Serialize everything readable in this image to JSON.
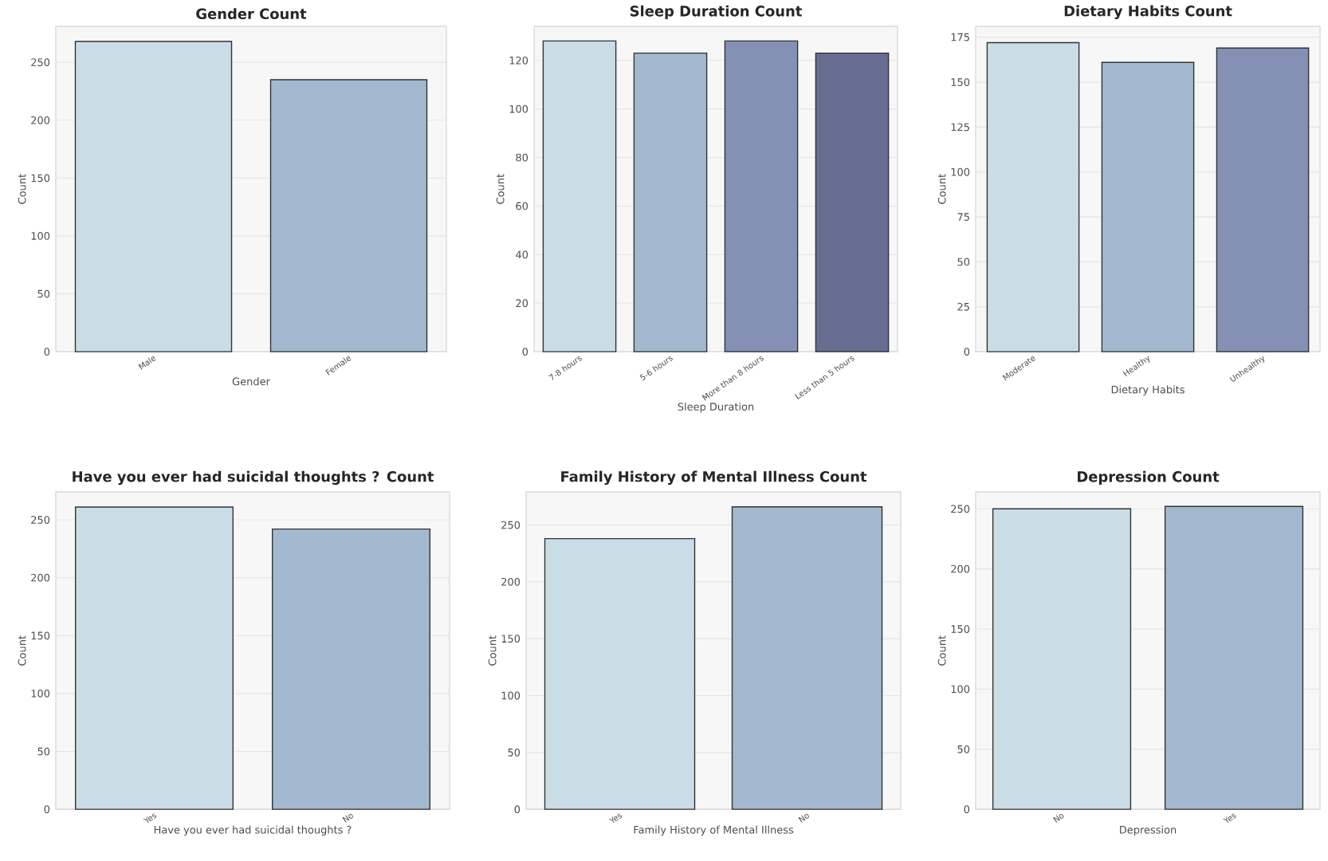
{
  "chart_data": [
    {
      "type": "bar",
      "title": "Gender Count",
      "xlabel": "Gender",
      "ylabel": "Count",
      "categories": [
        "Male",
        "Female"
      ],
      "values": [
        268,
        235
      ],
      "colors": [
        "#cadde6",
        "#a3b9cf"
      ],
      "ylim": [
        0,
        281
      ],
      "yticks": [
        0,
        50,
        100,
        150,
        200,
        250
      ],
      "grid": "y"
    },
    {
      "type": "bar",
      "title": "Sleep Duration Count",
      "xlabel": "Sleep Duration",
      "ylabel": "Count",
      "categories": [
        "7-8 hours",
        "5-6 hours",
        "More than 8 hours",
        "Less than 5 hours"
      ],
      "values": [
        128,
        123,
        128,
        123
      ],
      "colors": [
        "#cadde6",
        "#a3b9cf",
        "#8491b5",
        "#676c91"
      ],
      "ylim": [
        0,
        134
      ],
      "yticks": [
        0,
        20,
        40,
        60,
        80,
        100,
        120
      ],
      "grid": "y"
    },
    {
      "type": "bar",
      "title": "Dietary Habits Count",
      "xlabel": "Dietary Habits",
      "ylabel": "Count",
      "categories": [
        "Moderate",
        "Healthy",
        "Unhealthy"
      ],
      "values": [
        172,
        161,
        169
      ],
      "colors": [
        "#cadde6",
        "#a3b9cf",
        "#8491b5"
      ],
      "ylim": [
        0,
        181
      ],
      "yticks": [
        0,
        25,
        50,
        75,
        100,
        125,
        150,
        175
      ],
      "grid": "y"
    },
    {
      "type": "bar",
      "title": "Have you ever had suicidal thoughts ? Count",
      "xlabel": "Have you ever had suicidal thoughts ?",
      "ylabel": "Count",
      "categories": [
        "Yes",
        "No"
      ],
      "values": [
        261,
        242
      ],
      "colors": [
        "#cadde6",
        "#a3b9cf"
      ],
      "ylim": [
        0,
        274
      ],
      "yticks": [
        0,
        50,
        100,
        150,
        200,
        250
      ],
      "grid": "y"
    },
    {
      "type": "bar",
      "title": "Family History of Mental Illness Count",
      "xlabel": "Family History of Mental Illness",
      "ylabel": "Count",
      "categories": [
        "Yes",
        "No"
      ],
      "values": [
        238,
        266
      ],
      "colors": [
        "#cadde6",
        "#a3b9cf"
      ],
      "ylim": [
        0,
        279
      ],
      "yticks": [
        0,
        50,
        100,
        150,
        200,
        250
      ],
      "grid": "y"
    },
    {
      "type": "bar",
      "title": "Depression Count",
      "xlabel": "Depression",
      "ylabel": "Count",
      "categories": [
        "No",
        "Yes"
      ],
      "values": [
        250,
        252
      ],
      "colors": [
        "#cadde6",
        "#a3b9cf"
      ],
      "ylim": [
        0,
        264
      ],
      "yticks": [
        0,
        50,
        100,
        150,
        200,
        250
      ],
      "grid": "y"
    }
  ]
}
